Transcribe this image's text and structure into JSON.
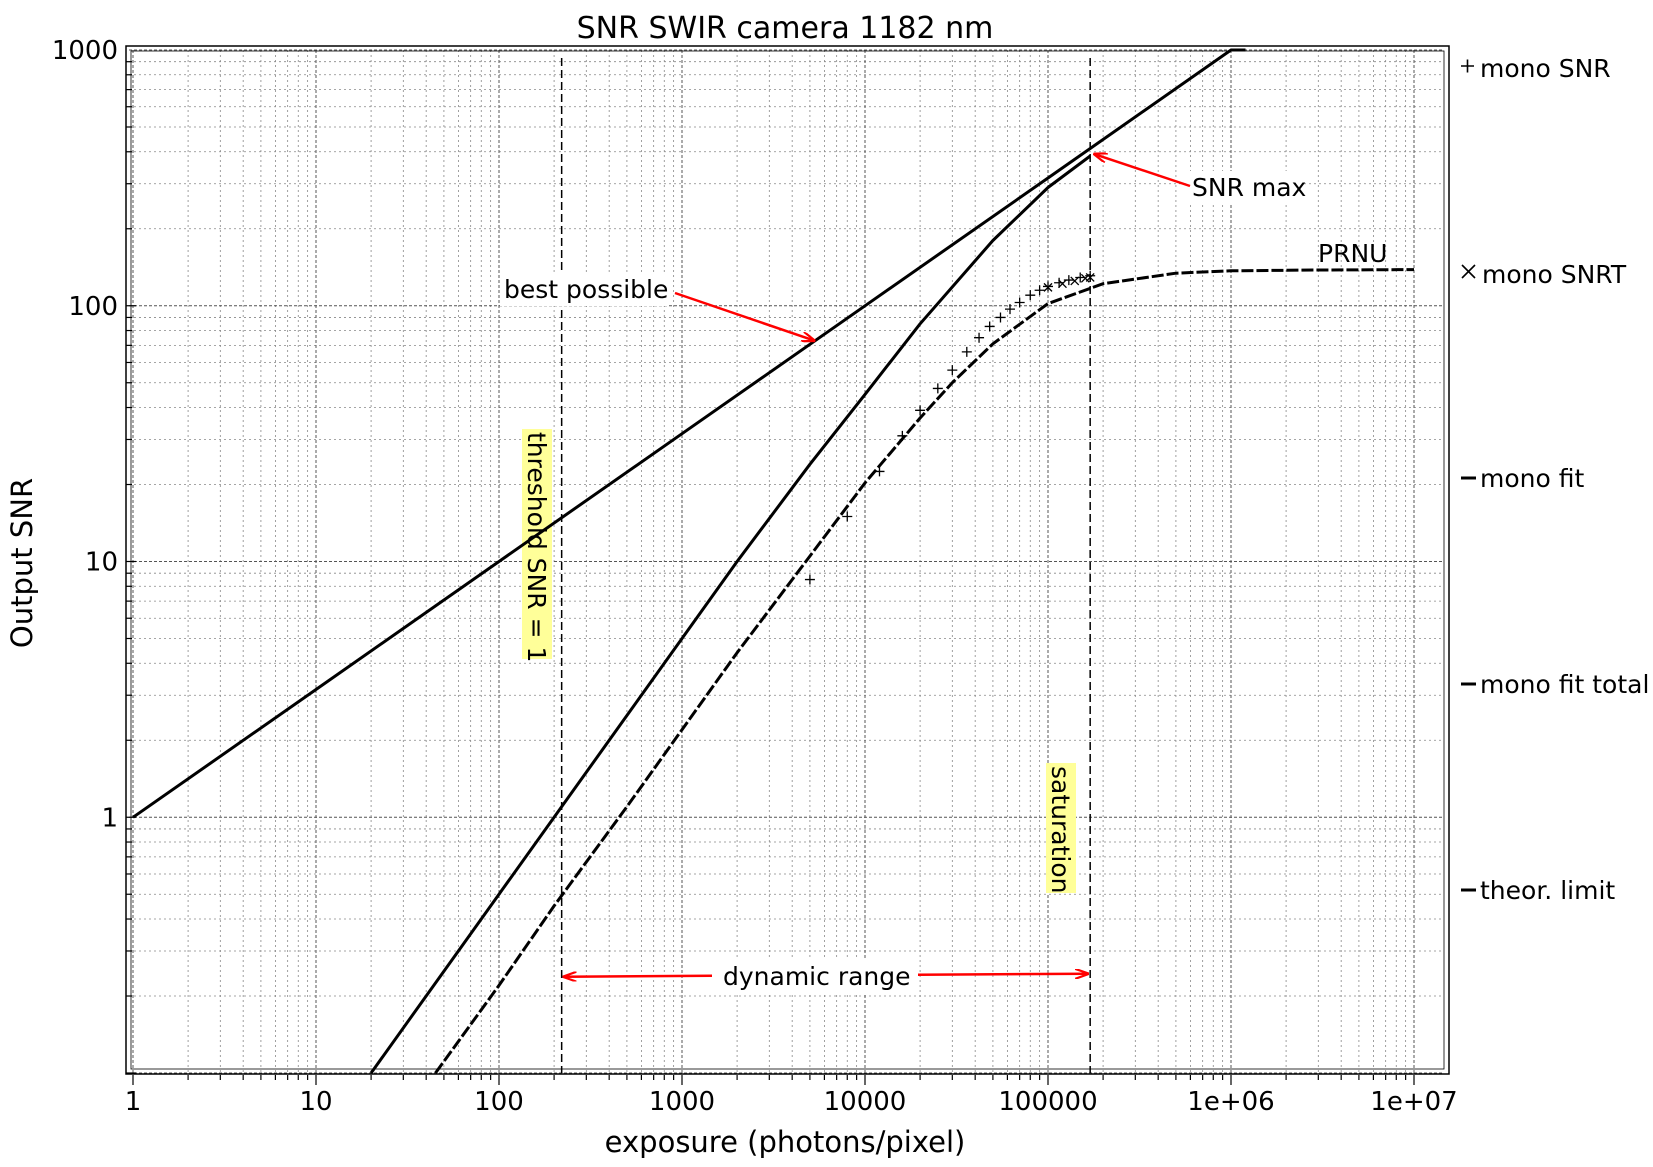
{
  "chart_data": {
    "type": "line",
    "title": "SNR SWIR camera 1182 nm",
    "xlabel": "exposure (photons/pixel)",
    "ylabel": "Output SNR",
    "xscale": "log",
    "yscale": "log",
    "xlim": [
      1,
      10000000
    ],
    "ylim": [
      0.1,
      1000
    ],
    "grid": true,
    "legend_position": "right",
    "x_tick_labels": [
      "1",
      "10",
      "100",
      "1000",
      "10000",
      "100000",
      "1e+06",
      "1e+07"
    ],
    "y_tick_labels": [
      "1000",
      "100",
      "10",
      "1"
    ],
    "legend": [
      "mono SNR",
      "mono SNRT",
      "mono fit",
      "mono fit total",
      "theor. limit"
    ],
    "series": [
      {
        "name": "mono SNR",
        "style": "plus-markers",
        "x": [
          5000,
          8000,
          12000,
          16000,
          20000,
          25000,
          30000,
          36000,
          42000,
          48000,
          55000,
          62000,
          70000,
          80000,
          90000,
          100000,
          115000,
          130000,
          150000,
          170000
        ],
        "y": [
          8.5,
          15,
          22.5,
          31,
          39,
          47.5,
          56,
          66,
          75,
          83,
          90,
          97,
          103,
          110,
          115,
          119,
          123,
          126,
          129,
          131
        ]
      },
      {
        "name": "mono SNRT",
        "style": "x-markers",
        "x": [
          100000,
          120000,
          140000,
          160000,
          170000
        ],
        "y": [
          118,
          122,
          125,
          128,
          129
        ]
      },
      {
        "name": "mono fit",
        "style": "solid",
        "x": [
          20,
          50,
          100,
          200,
          500,
          1000,
          2000,
          5000,
          10000,
          20000,
          50000,
          100000,
          170000
        ],
        "y": [
          0.1,
          0.25,
          0.5,
          1.0,
          2.5,
          5,
          10,
          24,
          45,
          85,
          180,
          290,
          385
        ]
      },
      {
        "name": "mono fit total",
        "style": "dashed",
        "x": [
          45,
          100,
          200,
          500,
          1000,
          2000,
          5000,
          10000,
          20000,
          30000,
          50000,
          100000,
          200000,
          500000,
          1000000,
          3000000,
          10000000
        ],
        "y": [
          0.1,
          0.22,
          0.45,
          1.1,
          2.2,
          4.4,
          10.5,
          20.3,
          36.4,
          50,
          71,
          102,
          122,
          134,
          137,
          138,
          138.5
        ]
      },
      {
        "name": "theor. limit",
        "style": "solid",
        "x": [
          1,
          10,
          100,
          1000,
          10000,
          100000,
          1000000,
          1200000
        ],
        "y": [
          1,
          3.16,
          10,
          31.6,
          100,
          316,
          1000,
          1095
        ]
      }
    ],
    "vertical_lines": [
      {
        "x": 220,
        "style": "dashed",
        "label": "threshold SNR = 1"
      },
      {
        "x": 170000,
        "style": "dashed",
        "label": "saturation"
      }
    ],
    "annotations": {
      "best_possible": {
        "text": "best possible",
        "target": [
          5300,
          73
        ]
      },
      "snr_max": {
        "text": "SNR max",
        "target": [
          170000,
          385
        ]
      },
      "prnu": {
        "text": "PRNU"
      },
      "dynamic_range": {
        "text": "dynamic range",
        "from": [
          220,
          0.24
        ],
        "to": [
          170000,
          0.24
        ]
      }
    },
    "colors": {
      "annotation_arrow": "#ff0000",
      "label_highlight": "#ffff99",
      "line": "#000000"
    }
  }
}
